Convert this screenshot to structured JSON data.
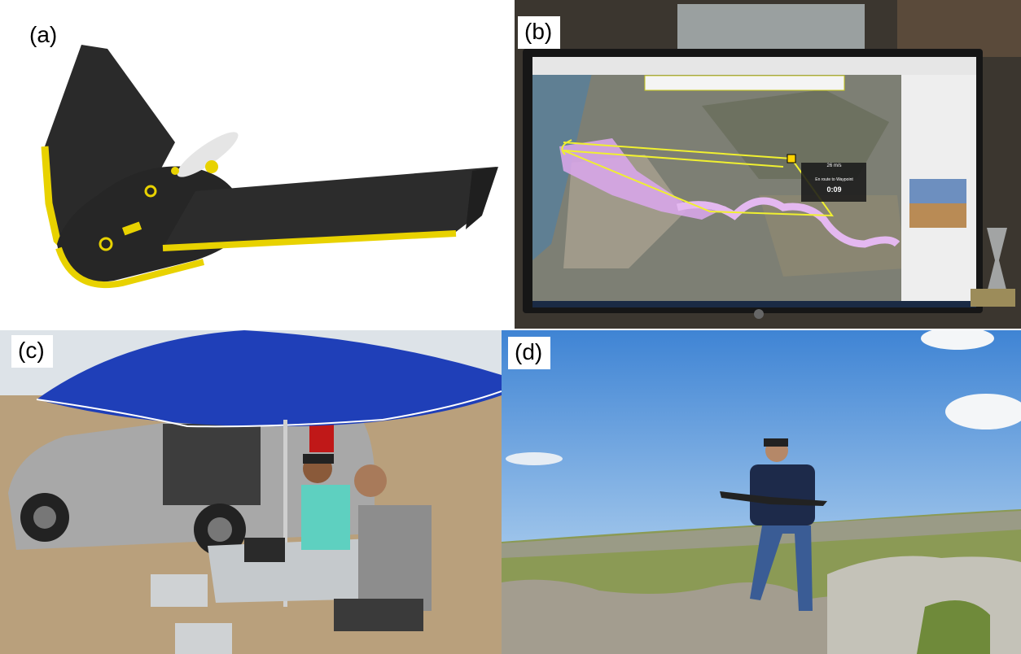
{
  "panels": {
    "a": {
      "label": "(a)"
    },
    "b": {
      "label": "(b)",
      "popup": {
        "speed": "26 m/s",
        "status": "En route to Waypoint",
        "timer": "0:09"
      }
    },
    "c": {
      "label": "(c)"
    },
    "d": {
      "label": "(d)"
    }
  },
  "colors": {
    "drone_body": "#2b2b2b",
    "drone_trim": "#e8d200",
    "monitor_frame": "#161616",
    "flight_path": "#f0f030",
    "survey_area": "#d7a6e8",
    "umbrella": "#1f3fb8",
    "sky": "#4f8fd6"
  }
}
